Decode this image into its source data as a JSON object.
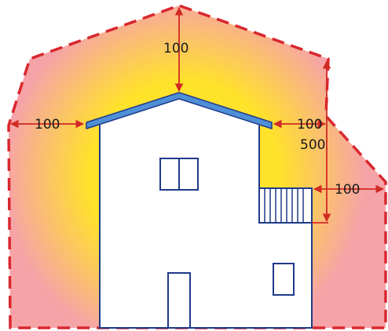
{
  "colors": {
    "zone_fill_outer": "#f6a3a8",
    "zone_fill_inner": "#ffe22a",
    "zone_outline": "#d9272e",
    "dimension_line": "#d22a24",
    "building_outline": "#1f3a8a",
    "roof_fill": "#4f8fd6",
    "building_fill": "#ffffff"
  },
  "dimensions": {
    "roof_top": "100",
    "left_side": "100",
    "right_side": "100",
    "right_vertical": "500",
    "balcony_side": "100"
  },
  "icons": {
    "window": "double-pane-window-icon",
    "door": "door-icon",
    "balcony_railing": "balcony-railing-icon"
  }
}
